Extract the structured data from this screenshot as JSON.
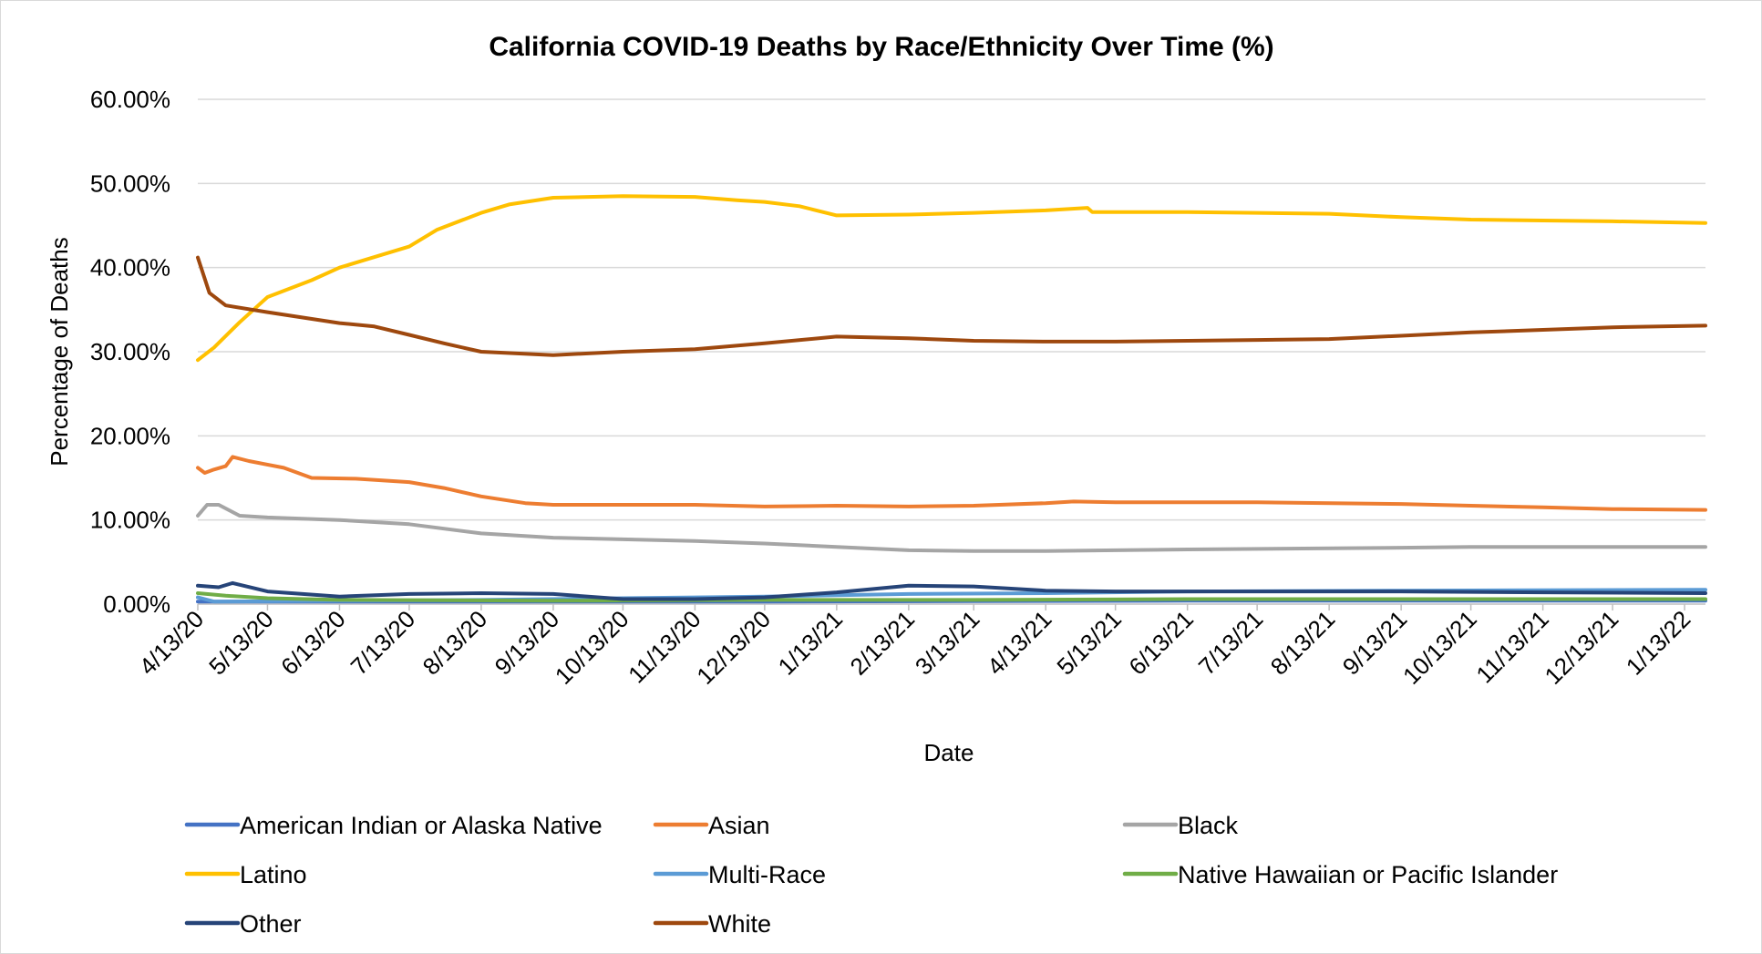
{
  "chart_data": {
    "type": "line",
    "title": "California COVID-19 Deaths by Race/Ethnicity Over Time (%)",
    "xlabel": "Date",
    "ylabel": "Percentage of Deaths",
    "ylim": [
      0,
      60
    ],
    "yticks": [
      "0.00%",
      "10.00%",
      "20.00%",
      "30.00%",
      "40.00%",
      "50.00%",
      "60.00%"
    ],
    "xticks": [
      "4/13/20",
      "5/13/20",
      "6/13/20",
      "7/13/20",
      "8/13/20",
      "9/13/20",
      "10/13/20",
      "11/13/20",
      "12/13/20",
      "1/13/21",
      "2/13/21",
      "3/13/21",
      "4/13/21",
      "5/13/21",
      "6/13/21",
      "7/13/21",
      "8/13/21",
      "9/13/21",
      "10/13/21",
      "11/13/21",
      "12/13/21",
      "1/13/22"
    ],
    "xlim": [
      "4/13/20",
      "1/22/22"
    ],
    "grid": "horizontal",
    "legend_position": "bottom",
    "series": [
      {
        "name": "American Indian or Alaska Native",
        "color": "#4472C4",
        "points": [
          [
            "4/13/20",
            0.3
          ],
          [
            "6/13/20",
            0.3
          ],
          [
            "9/13/20",
            0.3
          ],
          [
            "12/13/20",
            0.3
          ],
          [
            "3/13/21",
            0.35
          ],
          [
            "6/13/21",
            0.4
          ],
          [
            "9/13/21",
            0.4
          ],
          [
            "1/22/22",
            0.4
          ]
        ]
      },
      {
        "name": "Asian",
        "color": "#ED7D31",
        "points": [
          [
            "4/13/20",
            16.2
          ],
          [
            "4/16/20",
            15.6
          ],
          [
            "4/20/20",
            16.0
          ],
          [
            "4/25/20",
            16.4
          ],
          [
            "4/28/20",
            17.5
          ],
          [
            "5/5/20",
            17.0
          ],
          [
            "5/20/20",
            16.2
          ],
          [
            "6/1/20",
            15.0
          ],
          [
            "6/20/20",
            14.9
          ],
          [
            "7/13/20",
            14.5
          ],
          [
            "7/28/20",
            13.8
          ],
          [
            "8/13/20",
            12.8
          ],
          [
            "9/1/20",
            12.0
          ],
          [
            "9/13/20",
            11.8
          ],
          [
            "10/13/20",
            11.8
          ],
          [
            "11/13/20",
            11.8
          ],
          [
            "12/13/20",
            11.6
          ],
          [
            "1/13/21",
            11.7
          ],
          [
            "2/13/21",
            11.6
          ],
          [
            "3/13/21",
            11.7
          ],
          [
            "4/13/21",
            12.0
          ],
          [
            "4/25/21",
            12.2
          ],
          [
            "5/13/21",
            12.1
          ],
          [
            "7/13/21",
            12.1
          ],
          [
            "9/13/21",
            11.9
          ],
          [
            "10/13/21",
            11.7
          ],
          [
            "11/13/21",
            11.5
          ],
          [
            "12/13/21",
            11.3
          ],
          [
            "1/22/22",
            11.2
          ]
        ]
      },
      {
        "name": "Black",
        "color": "#A5A5A5",
        "points": [
          [
            "4/13/20",
            10.5
          ],
          [
            "4/17/20",
            11.8
          ],
          [
            "4/22/20",
            11.8
          ],
          [
            "5/1/20",
            10.5
          ],
          [
            "5/13/20",
            10.3
          ],
          [
            "6/13/20",
            10.0
          ],
          [
            "7/13/20",
            9.5
          ],
          [
            "8/13/20",
            8.4
          ],
          [
            "9/13/20",
            7.9
          ],
          [
            "10/13/20",
            7.7
          ],
          [
            "11/13/20",
            7.5
          ],
          [
            "12/13/20",
            7.2
          ],
          [
            "1/13/21",
            6.8
          ],
          [
            "2/13/21",
            6.4
          ],
          [
            "3/13/21",
            6.3
          ],
          [
            "4/13/21",
            6.3
          ],
          [
            "5/13/21",
            6.4
          ],
          [
            "6/13/21",
            6.5
          ],
          [
            "9/13/21",
            6.7
          ],
          [
            "10/13/21",
            6.8
          ],
          [
            "1/22/22",
            6.8
          ]
        ]
      },
      {
        "name": "Latino",
        "color": "#FFC000",
        "points": [
          [
            "4/13/20",
            29.0
          ],
          [
            "4/20/20",
            30.5
          ],
          [
            "5/1/20",
            33.5
          ],
          [
            "5/13/20",
            36.5
          ],
          [
            "6/1/20",
            38.5
          ],
          [
            "6/13/20",
            40.0
          ],
          [
            "6/25/20",
            41.0
          ],
          [
            "7/13/20",
            42.5
          ],
          [
            "7/25/20",
            44.5
          ],
          [
            "8/13/20",
            46.5
          ],
          [
            "8/25/20",
            47.5
          ],
          [
            "9/13/20",
            48.3
          ],
          [
            "10/13/20",
            48.5
          ],
          [
            "11/13/20",
            48.4
          ],
          [
            "12/1/20",
            48.0
          ],
          [
            "12/13/20",
            47.8
          ],
          [
            "12/28/20",
            47.3
          ],
          [
            "1/13/21",
            46.2
          ],
          [
            "2/13/21",
            46.3
          ],
          [
            "3/13/21",
            46.5
          ],
          [
            "4/13/21",
            46.8
          ],
          [
            "5/1/21",
            47.1
          ],
          [
            "5/3/21",
            46.6
          ],
          [
            "6/13/21",
            46.6
          ],
          [
            "7/13/21",
            46.5
          ],
          [
            "8/13/21",
            46.4
          ],
          [
            "9/13/21",
            46.0
          ],
          [
            "10/13/21",
            45.7
          ],
          [
            "11/13/21",
            45.6
          ],
          [
            "12/13/21",
            45.5
          ],
          [
            "1/22/22",
            45.3
          ]
        ]
      },
      {
        "name": "Multi-Race",
        "color": "#5B9BD5",
        "points": [
          [
            "4/13/20",
            0.8
          ],
          [
            "4/20/20",
            0.3
          ],
          [
            "6/13/20",
            0.4
          ],
          [
            "8/13/20",
            0.5
          ],
          [
            "10/13/20",
            0.7
          ],
          [
            "12/13/20",
            0.9
          ],
          [
            "2/13/21",
            1.2
          ],
          [
            "4/13/21",
            1.3
          ],
          [
            "6/13/21",
            1.5
          ],
          [
            "9/13/21",
            1.6
          ],
          [
            "1/22/22",
            1.7
          ]
        ]
      },
      {
        "name": "Native Hawaiian or Pacific Islander",
        "color": "#70AD47",
        "points": [
          [
            "4/13/20",
            1.3
          ],
          [
            "4/25/20",
            1.0
          ],
          [
            "5/13/20",
            0.7
          ],
          [
            "6/13/20",
            0.5
          ],
          [
            "9/13/20",
            0.4
          ],
          [
            "12/13/20",
            0.5
          ],
          [
            "3/13/21",
            0.5
          ],
          [
            "6/13/21",
            0.6
          ],
          [
            "9/13/21",
            0.6
          ],
          [
            "1/22/22",
            0.6
          ]
        ]
      },
      {
        "name": "Other",
        "color": "#264478",
        "points": [
          [
            "4/13/20",
            2.2
          ],
          [
            "4/22/20",
            2.0
          ],
          [
            "4/28/20",
            2.5
          ],
          [
            "5/13/20",
            1.5
          ],
          [
            "6/13/20",
            0.9
          ],
          [
            "7/13/20",
            1.2
          ],
          [
            "8/13/20",
            1.3
          ],
          [
            "9/13/20",
            1.2
          ],
          [
            "10/13/20",
            0.6
          ],
          [
            "11/13/20",
            0.6
          ],
          [
            "12/13/20",
            0.8
          ],
          [
            "1/13/21",
            1.4
          ],
          [
            "2/13/21",
            2.2
          ],
          [
            "3/13/21",
            2.1
          ],
          [
            "4/13/21",
            1.6
          ],
          [
            "5/13/21",
            1.5
          ],
          [
            "7/13/21",
            1.5
          ],
          [
            "9/13/21",
            1.5
          ],
          [
            "11/13/21",
            1.4
          ],
          [
            "1/22/22",
            1.3
          ]
        ]
      },
      {
        "name": "White",
        "color": "#9E480E",
        "points": [
          [
            "4/13/20",
            41.2
          ],
          [
            "4/18/20",
            37.0
          ],
          [
            "4/25/20",
            35.5
          ],
          [
            "5/13/20",
            34.7
          ],
          [
            "6/13/20",
            33.4
          ],
          [
            "6/28/20",
            33.0
          ],
          [
            "7/13/20",
            32.0
          ],
          [
            "7/28/20",
            31.0
          ],
          [
            "8/13/20",
            30.0
          ],
          [
            "9/13/20",
            29.6
          ],
          [
            "10/13/20",
            30.0
          ],
          [
            "11/13/20",
            30.3
          ],
          [
            "12/13/20",
            31.0
          ],
          [
            "1/13/21",
            31.8
          ],
          [
            "2/13/21",
            31.6
          ],
          [
            "3/13/21",
            31.3
          ],
          [
            "4/13/21",
            31.2
          ],
          [
            "5/13/21",
            31.2
          ],
          [
            "6/13/21",
            31.3
          ],
          [
            "7/13/21",
            31.4
          ],
          [
            "8/13/21",
            31.5
          ],
          [
            "9/13/21",
            31.9
          ],
          [
            "10/13/21",
            32.3
          ],
          [
            "11/13/21",
            32.6
          ],
          [
            "12/13/21",
            32.9
          ],
          [
            "1/22/22",
            33.1
          ]
        ]
      }
    ]
  }
}
